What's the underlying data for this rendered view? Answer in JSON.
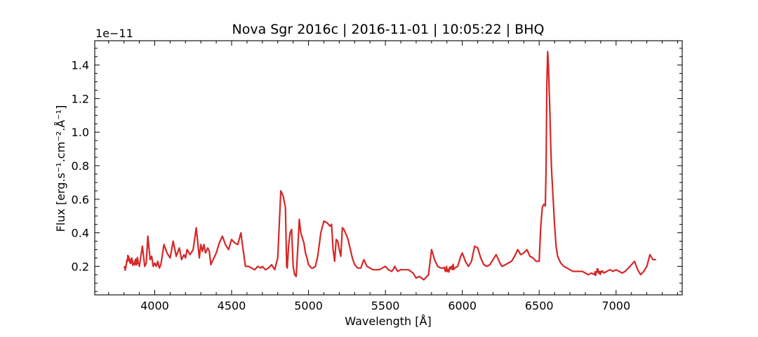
{
  "chart_data": {
    "type": "line",
    "title": "Nova Sgr 2016c | 2016-11-01 | 10:05:22 | BHQ",
    "xlabel": "Wavelength [Å]",
    "ylabel": "Flux [erg.s⁻¹.cm⁻².Å⁻¹]",
    "offset_text": "1e−11",
    "xlim": [
      3610,
      7430
    ],
    "ylim": [
      0.03,
      1.545
    ],
    "x_ticks": [
      4000,
      4500,
      5000,
      5500,
      6000,
      6500,
      7000
    ],
    "x_tick_labels": [
      "4000",
      "4500",
      "5000",
      "5500",
      "6000",
      "6500",
      "7000"
    ],
    "y_ticks": [
      0.2,
      0.4,
      0.6,
      0.8,
      1.0,
      1.2,
      1.4
    ],
    "y_tick_labels": [
      "0.2",
      "0.4",
      "0.6",
      "0.8",
      "1.0",
      "1.2",
      "1.4"
    ],
    "grid": false,
    "series_color": "#d62728",
    "series": [
      {
        "x": [
          3800,
          3810,
          3820,
          3830,
          3840,
          3850,
          3860,
          3870,
          3880,
          3890,
          3900,
          3910,
          3920,
          3935,
          3945,
          3955,
          3970,
          3980,
          3990,
          4000,
          4010,
          4020,
          4030,
          4040,
          4060,
          4080,
          4100,
          4120,
          4140,
          4160,
          4175,
          4190,
          4200,
          4210,
          4230,
          4250,
          4270,
          4290,
          4300,
          4310,
          4320,
          4330,
          4345,
          4355,
          4365,
          4380,
          4400,
          4420,
          4440,
          4460,
          4480,
          4500,
          4520,
          4540,
          4560,
          4575,
          4590,
          4600,
          4610,
          4630,
          4650,
          4670,
          4690,
          4700,
          4720,
          4740,
          4760,
          4780,
          4800,
          4820,
          4835,
          4850,
          4858,
          4862,
          4870,
          4880,
          4890,
          4900,
          4910,
          4920,
          4930,
          4940,
          4950,
          4960,
          4970,
          4980,
          4990,
          5000,
          5010,
          5018,
          5030,
          5045,
          5060,
          5080,
          5100,
          5120,
          5140,
          5150,
          5160,
          5170,
          5180,
          5190,
          5200,
          5210,
          5220,
          5230,
          5240,
          5250,
          5260,
          5270,
          5285,
          5300,
          5310,
          5320,
          5330,
          5340,
          5360,
          5380,
          5400,
          5420,
          5440,
          5460,
          5480,
          5500,
          5520,
          5540,
          5550,
          5560,
          5580,
          5600,
          5620,
          5650,
          5680,
          5700,
          5720,
          5750,
          5780,
          5800,
          5820,
          5840,
          5860,
          5880,
          5895,
          5905,
          5915,
          5930,
          5950,
          5970,
          5990,
          6000,
          6020,
          6040,
          6060,
          6080,
          6100,
          6120,
          6140,
          6160,
          6180,
          6200,
          6220,
          6240,
          6250,
          6260,
          6280,
          6300,
          6320,
          6340,
          6360,
          6380,
          6400,
          6420,
          6440,
          6460,
          6480,
          6500,
          6510,
          6520,
          6530,
          6540,
          6545,
          6550,
          6555,
          6560,
          6565,
          6570,
          6575,
          6580,
          6590,
          6600,
          6610,
          6620,
          6630,
          6640,
          6650,
          6660,
          6680,
          6700,
          6720,
          6740,
          6760,
          6780,
          6800,
          6820,
          6840,
          6860,
          6870,
          6880,
          6890,
          6900,
          6920,
          6940,
          6960,
          6980,
          7000,
          7020,
          7040,
          7060,
          7080,
          7100,
          7120,
          7140,
          7160,
          7180,
          7200,
          7220,
          7240,
          7260
        ],
        "y": [
          0.2,
          0.19,
          0.24,
          0.26,
          0.22,
          0.25,
          0.21,
          0.23,
          0.22,
          0.24,
          0.2,
          0.26,
          0.32,
          0.2,
          0.22,
          0.38,
          0.24,
          0.26,
          0.2,
          0.22,
          0.2,
          0.23,
          0.19,
          0.21,
          0.33,
          0.28,
          0.25,
          0.35,
          0.26,
          0.31,
          0.24,
          0.27,
          0.25,
          0.3,
          0.27,
          0.3,
          0.43,
          0.25,
          0.33,
          0.29,
          0.33,
          0.28,
          0.31,
          0.29,
          0.21,
          0.24,
          0.28,
          0.34,
          0.38,
          0.33,
          0.3,
          0.36,
          0.34,
          0.33,
          0.4,
          0.3,
          0.2,
          0.2,
          0.2,
          0.19,
          0.18,
          0.2,
          0.19,
          0.2,
          0.18,
          0.19,
          0.21,
          0.18,
          0.25,
          0.65,
          0.62,
          0.55,
          0.2,
          0.19,
          0.32,
          0.4,
          0.42,
          0.2,
          0.15,
          0.14,
          0.3,
          0.48,
          0.4,
          0.37,
          0.34,
          0.28,
          0.25,
          0.21,
          0.2,
          0.19,
          0.19,
          0.2,
          0.26,
          0.4,
          0.47,
          0.46,
          0.44,
          0.45,
          0.3,
          0.23,
          0.36,
          0.35,
          0.3,
          0.26,
          0.43,
          0.42,
          0.4,
          0.38,
          0.35,
          0.31,
          0.25,
          0.21,
          0.2,
          0.19,
          0.19,
          0.19,
          0.24,
          0.2,
          0.19,
          0.18,
          0.18,
          0.18,
          0.19,
          0.2,
          0.18,
          0.17,
          0.18,
          0.2,
          0.17,
          0.18,
          0.18,
          0.18,
          0.16,
          0.13,
          0.14,
          0.12,
          0.15,
          0.3,
          0.24,
          0.2,
          0.19,
          0.19,
          0.18,
          0.18,
          0.18,
          0.2,
          0.19,
          0.2,
          0.26,
          0.28,
          0.23,
          0.2,
          0.23,
          0.32,
          0.31,
          0.25,
          0.21,
          0.2,
          0.21,
          0.24,
          0.27,
          0.23,
          0.21,
          0.2,
          0.21,
          0.22,
          0.23,
          0.26,
          0.3,
          0.27,
          0.28,
          0.3,
          0.26,
          0.25,
          0.23,
          0.23,
          0.43,
          0.55,
          0.57,
          0.56,
          0.8,
          1.3,
          1.48,
          1.4,
          1.25,
          1.1,
          0.92,
          0.78,
          0.62,
          0.45,
          0.32,
          0.26,
          0.24,
          0.22,
          0.21,
          0.2,
          0.19,
          0.18,
          0.17,
          0.17,
          0.17,
          0.17,
          0.16,
          0.15,
          0.16,
          0.15,
          0.16,
          0.18,
          0.17,
          0.17,
          0.16,
          0.17,
          0.18,
          0.17,
          0.18,
          0.17,
          0.16,
          0.17,
          0.19,
          0.21,
          0.23,
          0.18,
          0.15,
          0.17,
          0.2,
          0.27,
          0.24,
          0.24
        ],
        "noise_regions": [
          [
            3800,
            3890
          ],
          [
            6860,
            6900
          ],
          [
            5880,
            5940
          ]
        ]
      }
    ]
  }
}
